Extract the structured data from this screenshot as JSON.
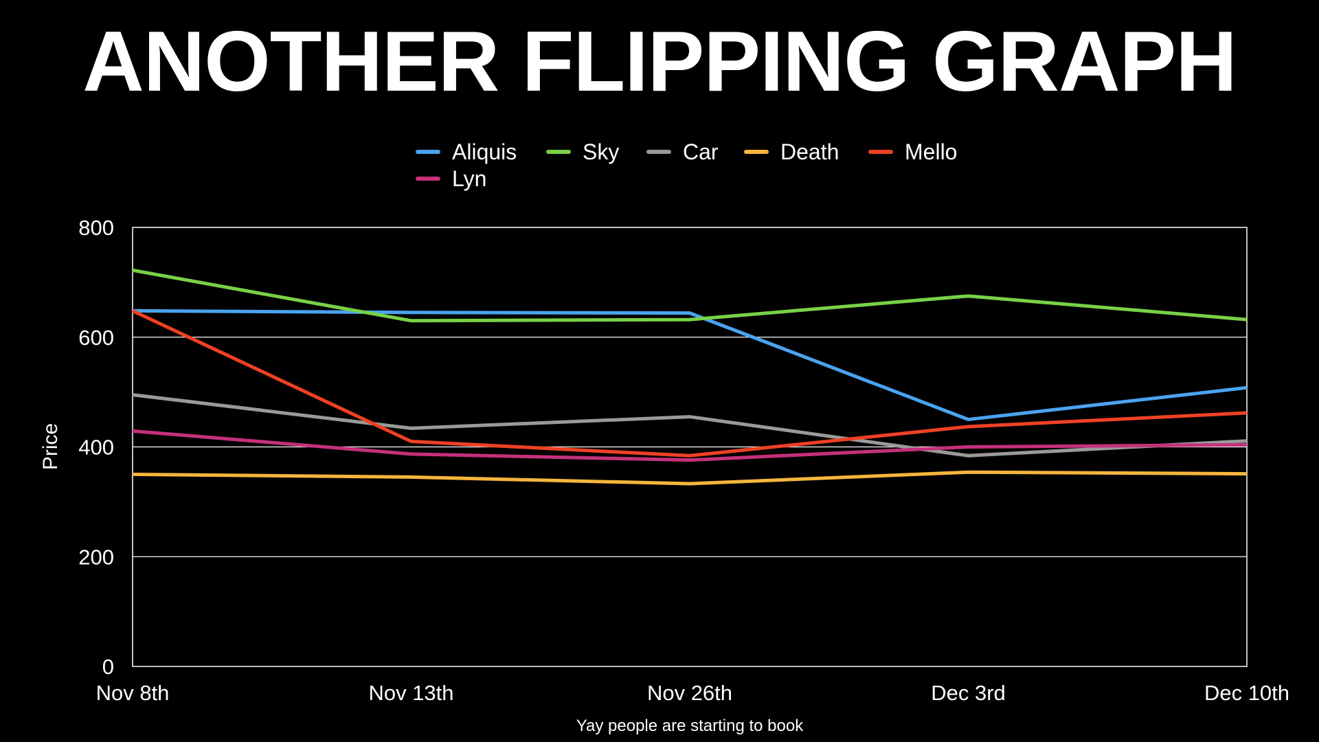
{
  "chart_data": {
    "type": "line",
    "title": "ANOTHER FLIPPING GRAPH",
    "xlabel": "Yay people are starting to book",
    "ylabel": "Price",
    "categories": [
      "Nov 8th",
      "Nov 13th",
      "Nov 26th",
      "Dec 3rd",
      "Dec 10th"
    ],
    "ylim": [
      0,
      800
    ],
    "yticks": [
      0,
      200,
      400,
      600,
      800
    ],
    "grid": true,
    "legend_position": "top-center",
    "background": "#000000",
    "series": [
      {
        "name": "Aliquis",
        "color": "#4aa3f0",
        "values": [
          648,
          645,
          644,
          450,
          508
        ]
      },
      {
        "name": "Sky",
        "color": "#79d147",
        "values": [
          722,
          630,
          632,
          675,
          632
        ]
      },
      {
        "name": "Car",
        "color": "#9a9a9a",
        "values": [
          495,
          434,
          455,
          384,
          411
        ]
      },
      {
        "name": "Death",
        "color": "#f6b53c",
        "values": [
          350,
          345,
          333,
          354,
          351
        ]
      },
      {
        "name": "Mello",
        "color": "#ef4123",
        "values": [
          648,
          410,
          384,
          437,
          462
        ]
      },
      {
        "name": "Lyn",
        "color": "#c6307a",
        "values": [
          429,
          387,
          376,
          400,
          404
        ]
      }
    ]
  }
}
